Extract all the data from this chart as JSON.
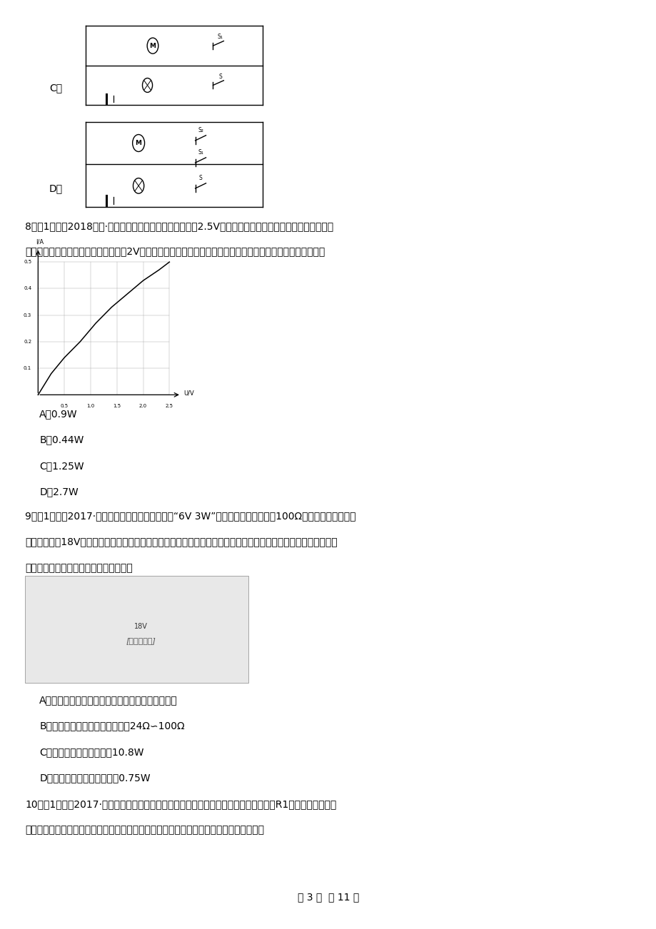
{
  "bg_color": "#ffffff",
  "text_color": "#000000",
  "page_width": 9.2,
  "page_height": 13.02,
  "dpi": 100,
  "q8_line1": "8．（1分）（2018九上·昌平期末）如图所示是额定电压为2.5V的小灯泡的电流随它两端电压变化的关系图",
  "q8_line2": "像．若把三只该规格的小灯泡并联接在2V的电源两端，（电源电压不变）则三只小灯泡消耗的总功率为（　　）",
  "q8_A": "A．0.9W",
  "q8_B": "B．0.44W",
  "q8_C": "C．1.25W",
  "q8_D": "D．2.7W",
  "q9_line1": "9．（1分）（2017·泰兴模拟）如图所示，把标有“6V 3W”的小灯泡与最大阻値为100Ω的滑动变阻器连接在",
  "q9_line2": "电源电压恒为18V的电路中，各表的示数均不超过所选量程，且灯泡两端电压不允许超过额定値（灯丝电阻不变），",
  "q9_line3": "闭合开关后，下列说法正确的是（　　）",
  "q9_A": "A．滑动变阻器滑片向左滑动的过程中，小灯泡变暗",
  "q9_B": "B．滑动变阻器的阻値变化范围为24Ω∽100Ω",
  "q9_C": "C．电路的总功率最大値为10.8W",
  "q9_D": "D．小灯泡的电功率最小値为0.75W",
  "q10_line1": "10．（1分）（2017·大庆）某兴趣小组为了研究电子温控装置，连接成如图所示电路，R1为热敏电阻，热敏",
  "q10_line2": "电阻的阻値随温度的升高而减小，闭合开关，当温度降低时，下列说法中正确的是（　　）",
  "footer": "第 3 页  共 11 页"
}
